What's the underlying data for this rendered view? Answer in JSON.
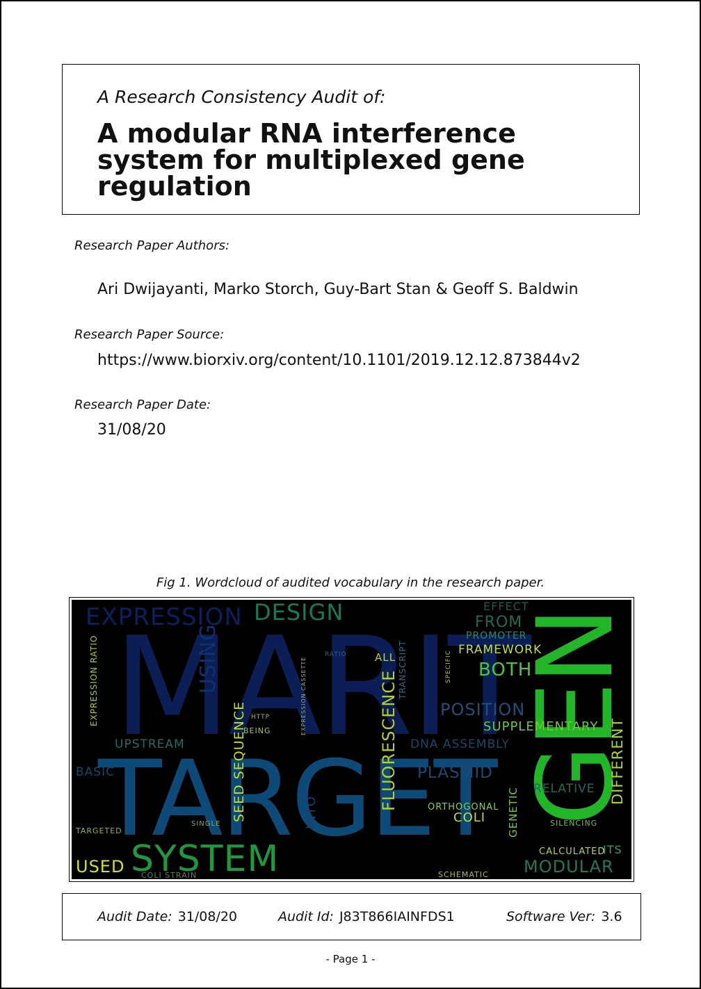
{
  "header": {
    "subtitle": "A Research Consistency Audit of:",
    "title": "A modular RNA interference system for multiplexed gene regulation"
  },
  "meta": {
    "authors_label": "Research Paper Authors:",
    "authors": "Ari Dwijayanti, Marko Storch, Guy-Bart Stan & Geoff S. Baldwin",
    "source_label": "Research Paper Source:",
    "source": "https://www.biorxiv.org/content/10.1101/2019.12.12.873844v2",
    "date_label": "Research Paper Date:",
    "date": "31/08/20"
  },
  "figure": {
    "caption": "Fig 1. Wordcloud of audited vocabulary in the research paper.",
    "words": [
      {
        "text": "MARIT",
        "color": "#0b1f56"
      },
      {
        "text": "TARGET",
        "color": "#0d4a78"
      },
      {
        "text": "GENE",
        "color": "#22b528"
      },
      {
        "text": "SYSTEM",
        "color": "#1d9a3d"
      },
      {
        "text": "EXPRESSION",
        "color": "#0b2060"
      },
      {
        "text": "DESIGN",
        "color": "#167a55"
      },
      {
        "text": "USING",
        "color": "#12306e"
      },
      {
        "text": "FLUORESCENCE",
        "color": "#b5d21f"
      },
      {
        "text": "SEED SEQUENCE",
        "color": "#c5df24"
      },
      {
        "text": "BOTH",
        "color": "#4cc637"
      },
      {
        "text": "FRAMEWORK",
        "color": "#c8e02a"
      },
      {
        "text": "POSITION",
        "color": "#1f5078"
      },
      {
        "text": "SUPPLEMENTARY",
        "color": "#6cc933"
      },
      {
        "text": "DIFFERENT",
        "color": "#a8d629"
      },
      {
        "text": "UPSTREAM",
        "color": "#1a6e66"
      },
      {
        "text": "DNA ASSEMBLY",
        "color": "#15496b"
      },
      {
        "text": "PLASMID",
        "color": "#1b4a73"
      },
      {
        "text": "RELATIVE",
        "color": "#1f6b60"
      },
      {
        "text": "MODULAR",
        "color": "#1b7a5f"
      },
      {
        "text": "USED",
        "color": "#d2e21e"
      },
      {
        "text": "COLI",
        "color": "#c5dd2c"
      },
      {
        "text": "ORTHOGONAL",
        "color": "#8bd03a"
      },
      {
        "text": "GENETIC",
        "color": "#7bc93a"
      },
      {
        "text": "INTO",
        "color": "#1b3c74"
      },
      {
        "text": "CALCULATED",
        "color": "#b7d735"
      },
      {
        "text": "ITS",
        "color": "#3c9c5c"
      },
      {
        "text": "BASIC",
        "color": "#12496a"
      },
      {
        "text": "EXPRESSION RATIO",
        "color": "#a9c93b"
      },
      {
        "text": "PROMOTER",
        "color": "#2b8d62"
      },
      {
        "text": "FROM",
        "color": "#1e6b5c"
      },
      {
        "text": "EFFECT",
        "color": "#1f5a52"
      },
      {
        "text": "ALL",
        "color": "#b4d535"
      },
      {
        "text": "TRANSCRIPT",
        "color": "#2b6d8a"
      },
      {
        "text": "TARGETED",
        "color": "#9ab34b"
      },
      {
        "text": "SCHEMATIC",
        "color": "#a8c23c"
      },
      {
        "text": "COLI STRAIN",
        "color": "#4d8a55"
      },
      {
        "text": "SILENCING",
        "color": "#89b54b"
      },
      {
        "text": "BEING",
        "color": "#a7c15a"
      },
      {
        "text": "HTTP",
        "color": "#a4b67a"
      },
      {
        "text": "SINGLE",
        "color": "#8aa76a"
      },
      {
        "text": "SPECIFIC",
        "color": "#a6c348"
      },
      {
        "text": "EXPRESSION CASSETTE",
        "color": "#8ea87e"
      },
      {
        "text": "RATIO",
        "color": "#3a5c78"
      }
    ]
  },
  "footer": {
    "audit_date_label": "Audit Date:",
    "audit_date": "31/08/20",
    "audit_id_label": "Audit Id:",
    "audit_id": "J83T866IAINFDS1",
    "software_label": "Software Ver:",
    "software": "3.6"
  },
  "page": {
    "label": "-  Page 1  -"
  }
}
